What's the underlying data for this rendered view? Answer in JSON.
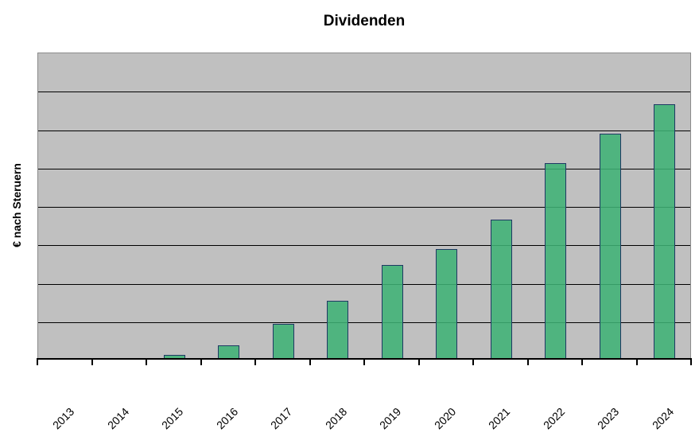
{
  "chart_data": {
    "type": "bar",
    "title": "Dividenden",
    "xlabel": "",
    "ylabel": "€ nach Steruern",
    "categories": [
      "2013",
      "2014",
      "2015",
      "2016",
      "2017",
      "2018",
      "2019",
      "2020",
      "2021",
      "2022",
      "2023",
      "2024"
    ],
    "values": [
      0,
      0.04,
      0.12,
      0.37,
      0.93,
      1.53,
      2.47,
      2.88,
      3.65,
      5.12,
      5.89,
      6.65
    ],
    "ylim": [
      0,
      8
    ],
    "y_tick_labels_visible": false,
    "x_tick_label_rotation_deg": 45,
    "grid": true,
    "gridline_count": 7,
    "legend": false,
    "colors": {
      "bar_fill": "#3EB275",
      "bar_border": "#1F3864",
      "plot_background": "#C0C0C0",
      "gridline": "#000000",
      "axis": "#000000",
      "page_background": "#FFFFFF",
      "text": "#000000"
    }
  }
}
